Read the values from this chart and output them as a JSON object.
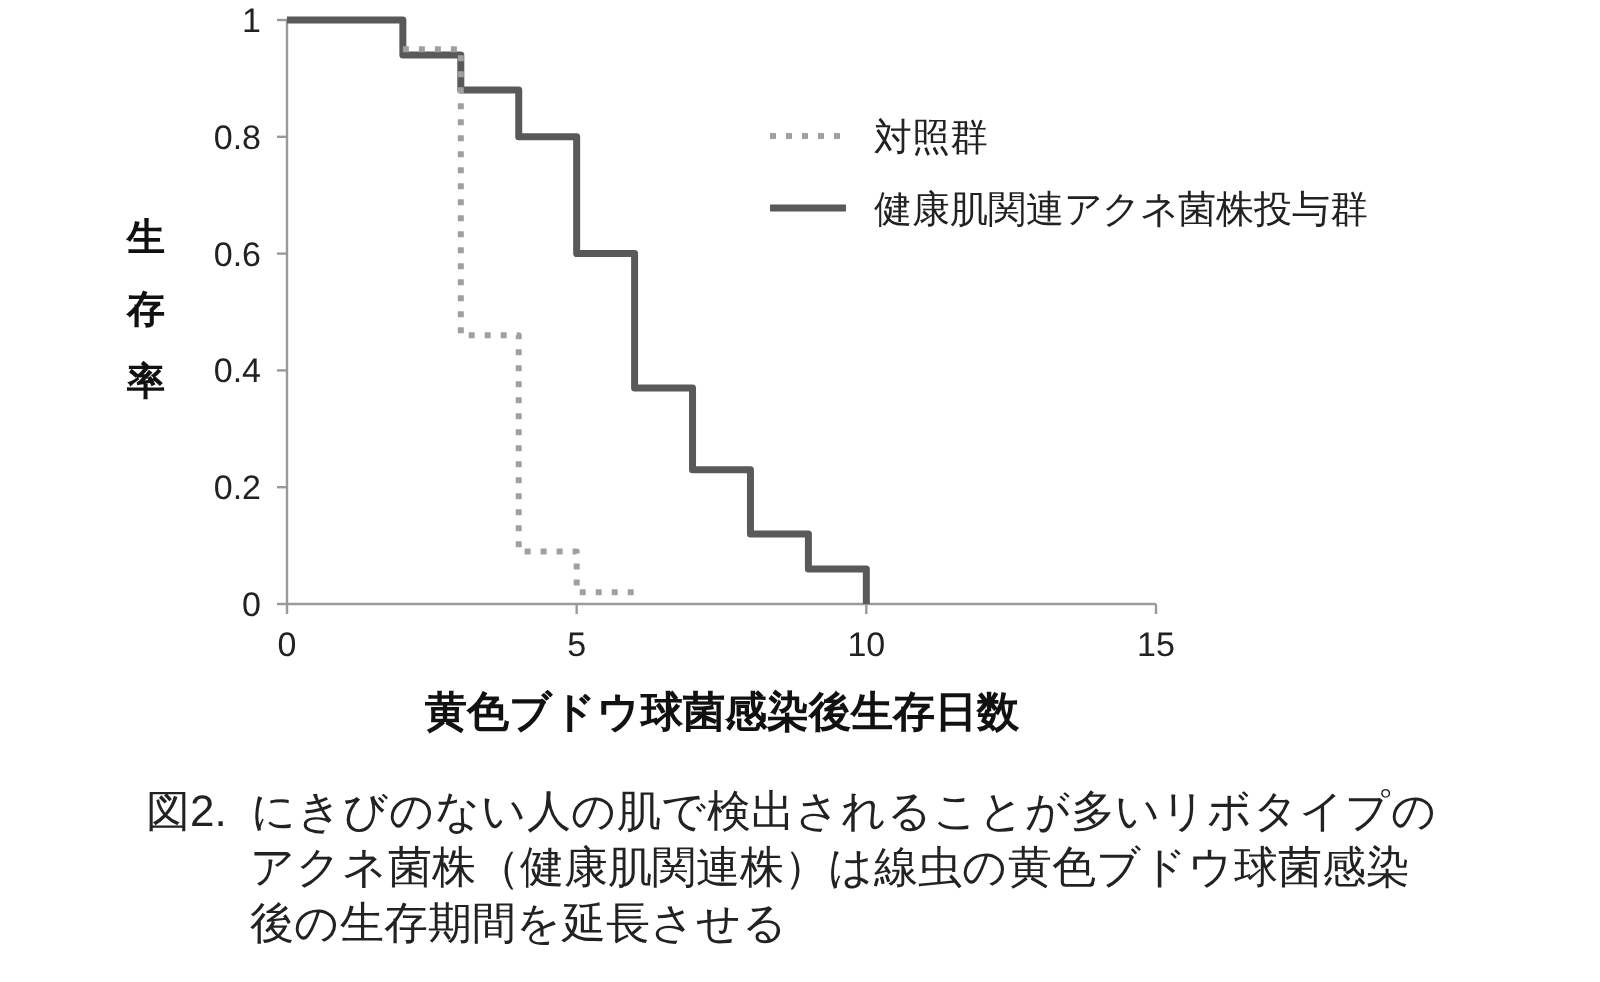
{
  "chart_data": {
    "type": "step",
    "xlabel": "黄色ブドウ球菌感染後生存日数",
    "ylabel": "生存率",
    "annotations": [
      "図2. にきびのない人の肌で検出されることが多いリボタイプのアクネ菌株（健康肌関連株）は線虫の黄色ブドウ球菌感染後の生存期間を延長させる"
    ],
    "xlim": [
      0,
      15
    ],
    "xticks": [
      0,
      5,
      10,
      15
    ],
    "ylim": [
      0,
      1
    ],
    "yticks": [
      0,
      0.2,
      0.4,
      0.6,
      0.8,
      1
    ],
    "legend": "top right",
    "series": [
      {
        "name": "対照群",
        "color": "#a0a0a0",
        "line_style": "dotted",
        "x": [
          2,
          3,
          4,
          5,
          6
        ],
        "values": [
          0.95,
          0.46,
          0.09,
          0.02,
          0.02
        ]
      },
      {
        "name": "健康肌関連アクネ菌株投与群",
        "color": "#595959",
        "line_style": "solid",
        "x": [
          0,
          2,
          3,
          4,
          5,
          6,
          7,
          8,
          9,
          10
        ],
        "values": [
          1,
          0.94,
          0.88,
          0.8,
          0.6,
          0.37,
          0.23,
          0.12,
          0.06,
          0
        ]
      }
    ]
  }
}
